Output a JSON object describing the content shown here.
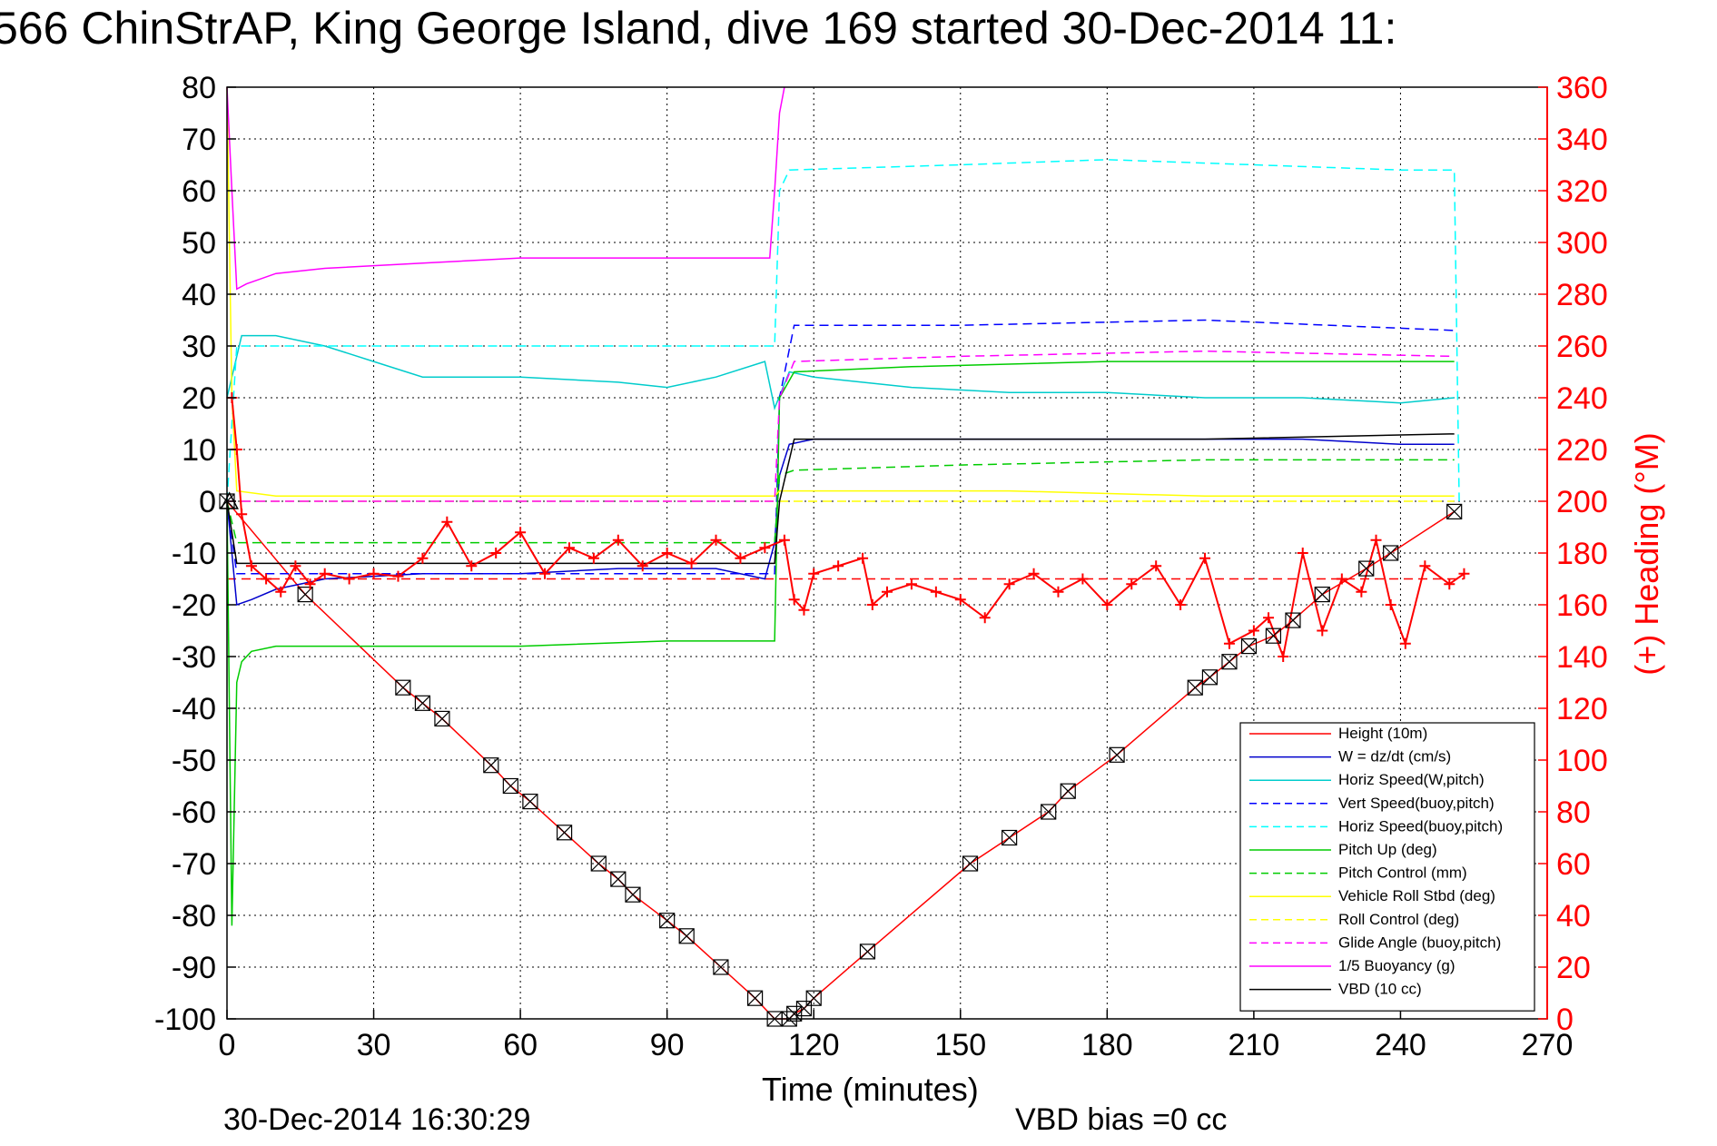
{
  "chart_data": {
    "type": "line",
    "title": "566 ChinStrAP, King George Island, dive 169 started 30-Dec-2014 11:",
    "xlabel": "Time (minutes)",
    "ylabel_right": "(+) Heading (°M)",
    "xlim": [
      0,
      270
    ],
    "ylim_left": [
      -100,
      80
    ],
    "ylim_right": [
      0,
      360
    ],
    "x_ticks": [
      0,
      30,
      60,
      90,
      120,
      150,
      180,
      210,
      240,
      270
    ],
    "y_left_ticks": [
      80,
      70,
      60,
      50,
      40,
      30,
      20,
      10,
      0,
      -10,
      -20,
      -30,
      -40,
      -50,
      -60,
      -70,
      -80,
      -90,
      -100
    ],
    "y_right_ticks": [
      360,
      340,
      320,
      300,
      280,
      260,
      240,
      220,
      200,
      180,
      160,
      140,
      120,
      100,
      80,
      60,
      40,
      20,
      0
    ],
    "grid": true,
    "legend_position": "bottom-right",
    "colors": {
      "right_axis": "#ff0000"
    },
    "series": [
      {
        "name": "Height (10m)",
        "color": "#ff0000",
        "style": "solid",
        "marker": "box-x",
        "x": [
          0,
          16,
          36,
          40,
          44,
          54,
          58,
          62,
          69,
          76,
          80,
          83,
          90,
          94,
          101,
          108,
          112,
          115,
          116,
          118,
          120,
          131,
          152,
          160,
          168,
          172,
          182,
          198,
          201,
          205,
          209,
          214,
          218,
          224,
          233,
          238,
          251
        ],
        "y": [
          0,
          -18,
          -36,
          -39,
          -42,
          -51,
          -55,
          -58,
          -64,
          -70,
          -73,
          -76,
          -81,
          -84,
          -90,
          -96,
          -100,
          -100,
          -99,
          -98,
          -96,
          -87,
          -70,
          -65,
          -60,
          -56,
          -49,
          -36,
          -34,
          -31,
          -28,
          -26,
          -23,
          -18,
          -13,
          -10,
          -2
        ]
      },
      {
        "name": "W = dz/dt (cm/s)",
        "color": "#0000cc",
        "style": "solid",
        "x": [
          0,
          2,
          5,
          10,
          20,
          40,
          60,
          80,
          100,
          110,
          112,
          113,
          115,
          120,
          140,
          160,
          180,
          200,
          220,
          240,
          251
        ],
        "y": [
          0,
          -20,
          -19,
          -17,
          -15,
          -14,
          -14,
          -13,
          -13,
          -15,
          -8,
          5,
          11,
          12,
          12,
          12,
          12,
          12,
          12,
          11,
          11
        ]
      },
      {
        "name": "Horiz Speed(W,pitch)",
        "color": "#00cccc",
        "style": "solid",
        "x": [
          0,
          3,
          10,
          20,
          30,
          40,
          60,
          80,
          90,
          100,
          110,
          112,
          115,
          120,
          140,
          160,
          180,
          200,
          220,
          240,
          251
        ],
        "y": [
          20,
          32,
          32,
          30,
          27,
          24,
          24,
          23,
          22,
          24,
          27,
          18,
          25,
          24,
          22,
          21,
          21,
          20,
          20,
          19,
          20
        ]
      },
      {
        "name": "Vert Speed(buoy,pitch)",
        "color": "#0000ff",
        "style": "dashed",
        "x": [
          0,
          2,
          112,
          113,
          116,
          150,
          200,
          251
        ],
        "y": [
          0,
          -14,
          -14,
          20,
          34,
          34,
          35,
          33
        ]
      },
      {
        "name": "Horiz Speed(buoy,pitch)",
        "color": "#00ffff",
        "style": "dashed",
        "x": [
          0,
          2,
          112,
          113,
          115,
          150,
          180,
          210,
          240,
          251,
          252
        ],
        "y": [
          0,
          30,
          30,
          60,
          64,
          65,
          66,
          65,
          64,
          64,
          0
        ]
      },
      {
        "name": "Pitch Up (deg)",
        "color": "#00cc00",
        "style": "solid",
        "x": [
          0,
          1,
          2,
          3,
          5,
          10,
          30,
          60,
          90,
          112,
          113,
          116,
          140,
          180,
          200,
          220,
          240,
          251
        ],
        "y": [
          0,
          -82,
          -35,
          -31,
          -29,
          -28,
          -28,
          -28,
          -27,
          -27,
          20,
          25,
          26,
          27,
          27,
          27,
          27,
          27
        ]
      },
      {
        "name": "Pitch Control (mm)",
        "color": "#00cc00",
        "style": "dashed",
        "x": [
          0,
          2,
          112,
          113,
          116,
          150,
          200,
          251
        ],
        "y": [
          0,
          -8,
          -8,
          5,
          6,
          7,
          8,
          8
        ]
      },
      {
        "name": "Vehicle Roll Stbd (deg)",
        "color": "#ffff00",
        "style": "solid",
        "x": [
          0,
          1,
          2,
          10,
          40,
          80,
          112,
          113,
          120,
          160,
          200,
          240,
          251
        ],
        "y": [
          80,
          20,
          2,
          1,
          1,
          1,
          1,
          2,
          2,
          2,
          1,
          1,
          1
        ]
      },
      {
        "name": "Roll Control (deg)",
        "color": "#ffff00",
        "style": "dashed",
        "x": [
          0,
          2,
          112,
          113,
          251
        ],
        "y": [
          0,
          0,
          0,
          0,
          0
        ]
      },
      {
        "name": "Glide Angle (buoy,pitch)",
        "color": "#ff00ff",
        "style": "dashed",
        "x": [
          0,
          2,
          112,
          113,
          116,
          150,
          200,
          251
        ],
        "y": [
          0,
          0,
          0,
          20,
          27,
          28,
          29,
          28
        ]
      },
      {
        "name": "1/5 Buoyancy (g)",
        "color": "#ff00ff",
        "style": "solid",
        "x": [
          0,
          1,
          2,
          4,
          10,
          20,
          40,
          60,
          80,
          100,
          108,
          111,
          112,
          113,
          114
        ],
        "y": [
          80,
          60,
          41,
          42,
          44,
          45,
          46,
          47,
          47,
          47,
          47,
          47,
          60,
          75,
          80
        ]
      },
      {
        "name": "VBD (10 cc)",
        "color": "#000000",
        "style": "solid",
        "x": [
          0,
          2,
          10,
          60,
          112,
          113,
          116,
          130,
          200,
          250,
          251
        ],
        "y": [
          0,
          -12,
          -12,
          -12,
          -12,
          0,
          12,
          12,
          12,
          13,
          13
        ]
      }
    ],
    "heading_series": {
      "name": "(+) Heading (°M)",
      "axis": "right",
      "color": "#ff0000",
      "marker": "plus",
      "x": [
        1,
        2,
        3,
        5,
        8,
        11,
        14,
        17,
        20,
        25,
        30,
        35,
        40,
        45,
        50,
        55,
        60,
        65,
        70,
        75,
        80,
        85,
        90,
        95,
        100,
        105,
        110,
        114,
        116,
        118,
        120,
        125,
        130,
        132,
        135,
        140,
        145,
        150,
        155,
        160,
        165,
        170,
        175,
        180,
        185,
        190,
        195,
        200,
        205,
        210,
        213,
        216,
        220,
        224,
        228,
        232,
        235,
        238,
        241,
        245,
        250,
        253
      ],
      "y": [
        240,
        220,
        195,
        175,
        170,
        165,
        175,
        168,
        172,
        170,
        172,
        171,
        178,
        192,
        175,
        180,
        188,
        172,
        182,
        178,
        185,
        175,
        180,
        176,
        185,
        178,
        182,
        185,
        162,
        158,
        172,
        175,
        178,
        160,
        165,
        168,
        165,
        162,
        155,
        168,
        172,
        165,
        170,
        160,
        168,
        175,
        160,
        178,
        145,
        150,
        155,
        140,
        180,
        150,
        170,
        165,
        185,
        160,
        145,
        175,
        168,
        172
      ]
    },
    "reference_line": {
      "name": "heading reference",
      "value_right": 170,
      "color": "#ff0000",
      "style": "dashed"
    }
  },
  "footer": {
    "timestamp": "30-Dec-2014 16:30:29",
    "vbd_bias": "VBD bias =0 cc"
  }
}
